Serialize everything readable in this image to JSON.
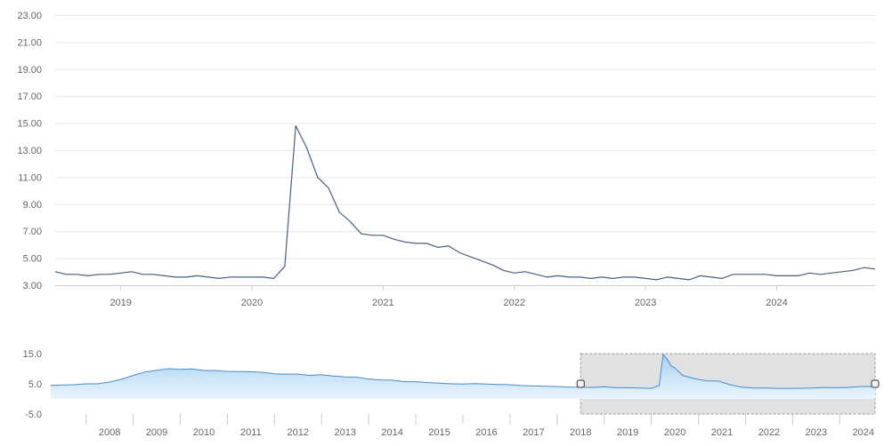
{
  "chart_data": [
    {
      "type": "line",
      "role": "main",
      "title": "",
      "xlabel": "",
      "ylabel": "",
      "ylim": [
        3.0,
        23.0
      ],
      "yticks": [
        "23.00",
        "21.00",
        "19.00",
        "17.00",
        "15.00",
        "13.00",
        "11.00",
        "9.00",
        "7.00",
        "5.00",
        "3.00"
      ],
      "xticks": [
        "2019",
        "2020",
        "2021",
        "2022",
        "2023",
        "2024"
      ],
      "grid": true,
      "colors": {
        "line": "#4a5f7e",
        "grid": "#e6e6e6",
        "axis": "#cccccc"
      },
      "series": [
        {
          "points": [
            [
              "2018-07",
              4.0
            ],
            [
              "2018-08",
              3.8
            ],
            [
              "2018-09",
              3.8
            ],
            [
              "2018-10",
              3.7
            ],
            [
              "2018-11",
              3.8
            ],
            [
              "2018-12",
              3.8
            ],
            [
              "2019-01",
              3.9
            ],
            [
              "2019-02",
              4.0
            ],
            [
              "2019-03",
              3.8
            ],
            [
              "2019-04",
              3.8
            ],
            [
              "2019-05",
              3.7
            ],
            [
              "2019-06",
              3.6
            ],
            [
              "2019-07",
              3.6
            ],
            [
              "2019-08",
              3.7
            ],
            [
              "2019-09",
              3.6
            ],
            [
              "2019-10",
              3.5
            ],
            [
              "2019-11",
              3.6
            ],
            [
              "2019-12",
              3.6
            ],
            [
              "2020-01",
              3.6
            ],
            [
              "2020-02",
              3.6
            ],
            [
              "2020-03",
              3.5
            ],
            [
              "2020-04",
              4.4
            ],
            [
              "2020-05",
              14.8
            ],
            [
              "2020-06",
              13.2
            ],
            [
              "2020-07",
              11.0
            ],
            [
              "2020-08",
              10.2
            ],
            [
              "2020-09",
              8.4
            ],
            [
              "2020-10",
              7.7
            ],
            [
              "2020-11",
              6.8
            ],
            [
              "2020-12",
              6.7
            ],
            [
              "2021-01",
              6.7
            ],
            [
              "2021-02",
              6.4
            ],
            [
              "2021-03",
              6.2
            ],
            [
              "2021-04",
              6.1
            ],
            [
              "2021-05",
              6.1
            ],
            [
              "2021-06",
              5.8
            ],
            [
              "2021-07",
              5.9
            ],
            [
              "2021-08",
              5.4
            ],
            [
              "2021-09",
              5.1
            ],
            [
              "2021-10",
              4.8
            ],
            [
              "2021-11",
              4.5
            ],
            [
              "2021-12",
              4.1
            ],
            [
              "2022-01",
              3.9
            ],
            [
              "2022-02",
              4.0
            ],
            [
              "2022-03",
              3.8
            ],
            [
              "2022-04",
              3.6
            ],
            [
              "2022-05",
              3.7
            ],
            [
              "2022-06",
              3.6
            ],
            [
              "2022-07",
              3.6
            ],
            [
              "2022-08",
              3.5
            ],
            [
              "2022-09",
              3.6
            ],
            [
              "2022-10",
              3.5
            ],
            [
              "2022-11",
              3.6
            ],
            [
              "2022-12",
              3.6
            ],
            [
              "2023-01",
              3.5
            ],
            [
              "2023-02",
              3.4
            ],
            [
              "2023-03",
              3.6
            ],
            [
              "2023-04",
              3.5
            ],
            [
              "2023-05",
              3.4
            ],
            [
              "2023-06",
              3.7
            ],
            [
              "2023-07",
              3.6
            ],
            [
              "2023-08",
              3.5
            ],
            [
              "2023-09",
              3.8
            ],
            [
              "2023-10",
              3.8
            ],
            [
              "2023-11",
              3.8
            ],
            [
              "2023-12",
              3.8
            ],
            [
              "2024-01",
              3.7
            ],
            [
              "2024-02",
              3.7
            ],
            [
              "2024-03",
              3.7
            ],
            [
              "2024-04",
              3.9
            ],
            [
              "2024-05",
              3.8
            ],
            [
              "2024-06",
              3.9
            ],
            [
              "2024-07",
              4.0
            ],
            [
              "2024-08",
              4.1
            ],
            [
              "2024-09",
              4.3
            ],
            [
              "2024-10",
              4.2
            ]
          ]
        }
      ]
    },
    {
      "type": "area",
      "role": "navigator",
      "ylim": [
        -5.0,
        15.0
      ],
      "yticks": [
        "15.0",
        "5.0",
        "-5.0"
      ],
      "xticks": [
        "2008",
        "2009",
        "2010",
        "2011",
        "2012",
        "2013",
        "2014",
        "2015",
        "2016",
        "2017",
        "2018",
        "2019",
        "2020",
        "2021",
        "2022",
        "2023",
        "2024"
      ],
      "selection": [
        "2018-07",
        "2024-10"
      ],
      "colors": {
        "line": "#4b8bc8",
        "fill_top": "#a9d2f3",
        "fill_bottom": "#eaf5fd",
        "selection": "#dfe1e3",
        "handle": "#f2f2f2"
      },
      "series": [
        {
          "points": [
            [
              "2007-04",
              4.5
            ],
            [
              "2007-07",
              4.6
            ],
            [
              "2007-10",
              4.7
            ],
            [
              "2008-01",
              5.0
            ],
            [
              "2008-04",
              5.0
            ],
            [
              "2008-07",
              5.6
            ],
            [
              "2008-10",
              6.5
            ],
            [
              "2009-01",
              7.8
            ],
            [
              "2009-04",
              8.9
            ],
            [
              "2009-07",
              9.5
            ],
            [
              "2009-10",
              10.0
            ],
            [
              "2010-01",
              9.8
            ],
            [
              "2010-04",
              9.9
            ],
            [
              "2010-07",
              9.4
            ],
            [
              "2010-10",
              9.4
            ],
            [
              "2011-01",
              9.1
            ],
            [
              "2011-04",
              9.1
            ],
            [
              "2011-07",
              9.0
            ],
            [
              "2011-10",
              8.8
            ],
            [
              "2012-01",
              8.3
            ],
            [
              "2012-04",
              8.2
            ],
            [
              "2012-07",
              8.2
            ],
            [
              "2012-10",
              7.8
            ],
            [
              "2013-01",
              8.0
            ],
            [
              "2013-04",
              7.6
            ],
            [
              "2013-07",
              7.3
            ],
            [
              "2013-10",
              7.2
            ],
            [
              "2014-01",
              6.6
            ],
            [
              "2014-04",
              6.3
            ],
            [
              "2014-07",
              6.2
            ],
            [
              "2014-10",
              5.7
            ],
            [
              "2015-01",
              5.7
            ],
            [
              "2015-04",
              5.4
            ],
            [
              "2015-07",
              5.2
            ],
            [
              "2015-10",
              5.0
            ],
            [
              "2016-01",
              4.9
            ],
            [
              "2016-04",
              5.1
            ],
            [
              "2016-07",
              4.9
            ],
            [
              "2016-10",
              4.8
            ],
            [
              "2017-01",
              4.7
            ],
            [
              "2017-04",
              4.4
            ],
            [
              "2017-07",
              4.3
            ],
            [
              "2017-10",
              4.2
            ],
            [
              "2018-01",
              4.1
            ],
            [
              "2018-04",
              3.9
            ],
            [
              "2018-07",
              3.9
            ],
            [
              "2018-10",
              3.8
            ],
            [
              "2019-01",
              4.0
            ],
            [
              "2019-04",
              3.7
            ],
            [
              "2019-07",
              3.7
            ],
            [
              "2019-10",
              3.6
            ],
            [
              "2020-01",
              3.5
            ],
            [
              "2020-03",
              4.4
            ],
            [
              "2020-04",
              14.7
            ],
            [
              "2020-05",
              13.2
            ],
            [
              "2020-06",
              11.0
            ],
            [
              "2020-07",
              10.2
            ],
            [
              "2020-09",
              7.8
            ],
            [
              "2020-12",
              6.7
            ],
            [
              "2021-03",
              6.0
            ],
            [
              "2021-06",
              5.9
            ],
            [
              "2021-09",
              4.7
            ],
            [
              "2021-12",
              3.9
            ],
            [
              "2022-03",
              3.6
            ],
            [
              "2022-06",
              3.6
            ],
            [
              "2022-09",
              3.5
            ],
            [
              "2022-12",
              3.5
            ],
            [
              "2023-03",
              3.5
            ],
            [
              "2023-06",
              3.6
            ],
            [
              "2023-09",
              3.8
            ],
            [
              "2023-12",
              3.7
            ],
            [
              "2024-03",
              3.8
            ],
            [
              "2024-06",
              4.1
            ],
            [
              "2024-09",
              4.1
            ],
            [
              "2024-10",
              4.1
            ]
          ]
        }
      ]
    }
  ]
}
